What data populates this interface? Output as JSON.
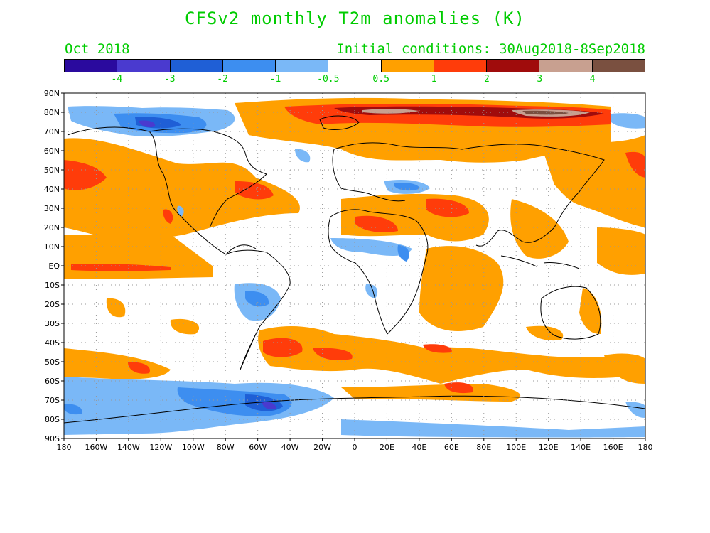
{
  "title": "CFSv2 monthly T2m anomalies (K)",
  "period": "Oct 2018",
  "initial_conditions": "Initial conditions: 30Aug2018-8Sep2018",
  "colorbar": {
    "colors": [
      "#2a0a9e",
      "#4a3acf",
      "#1f5fd6",
      "#3d8ef0",
      "#7ab8f7",
      "#ffffff",
      "#ffa000",
      "#ff3c0a",
      "#a00c0c",
      "#c8a090",
      "#7a5040"
    ],
    "labels": [
      "-4",
      "-3",
      "-2",
      "-1",
      "-0.5",
      "0.5",
      "1",
      "2",
      "3",
      "4"
    ]
  },
  "lat_labels": [
    "90N",
    "80N",
    "70N",
    "60N",
    "50N",
    "40N",
    "30N",
    "20N",
    "10N",
    "EQ",
    "10S",
    "20S",
    "30S",
    "40S",
    "50S",
    "60S",
    "70S",
    "80S",
    "90S"
  ],
  "lon_labels": [
    "180",
    "160W",
    "140W",
    "120W",
    "100W",
    "80W",
    "60W",
    "40W",
    "20W",
    "0",
    "20E",
    "40E",
    "60E",
    "80E",
    "100E",
    "120E",
    "140E",
    "160E",
    "180"
  ]
}
